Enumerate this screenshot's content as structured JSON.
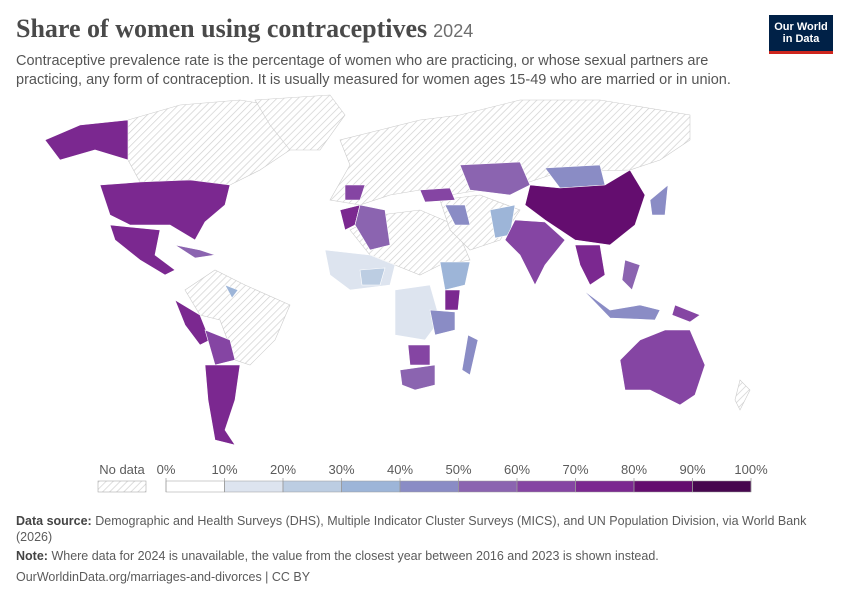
{
  "header": {
    "title": "Share of women using contraceptives",
    "year": "2024",
    "subtitle": "Contraceptive prevalence rate is the percentage of women who are practicing, or whose sexual partners are practicing, any form of contraception. It is usually measured for women ages 15-49 who are married or in union.",
    "logo": [
      "Our World",
      "in Data"
    ]
  },
  "legend": {
    "no_data": "No data",
    "ticks": [
      "0%",
      "10%",
      "20%",
      "30%",
      "40%",
      "50%",
      "60%",
      "70%",
      "80%",
      "90%",
      "100%"
    ],
    "colors": [
      "#ffffff",
      "#dde4ef",
      "#bccde2",
      "#9db5d8",
      "#8a8cc5",
      "#8b64b0",
      "#8545a3",
      "#7b2890",
      "#640d6f",
      "#47074f"
    ]
  },
  "footer": {
    "source_label": "Data source:",
    "source": "Demographic and Health Surveys (DHS), Multiple Indicator Cluster Surveys (MICS), and UN Population Division, via World Bank (2026)",
    "note_label": "Note:",
    "note": "Where data for 2024 is unavailable, the value from the closest year between 2016 and 2023 is shown instead.",
    "url": "OurWorldinData.org/marriages-and-divorces | CC BY"
  }
}
